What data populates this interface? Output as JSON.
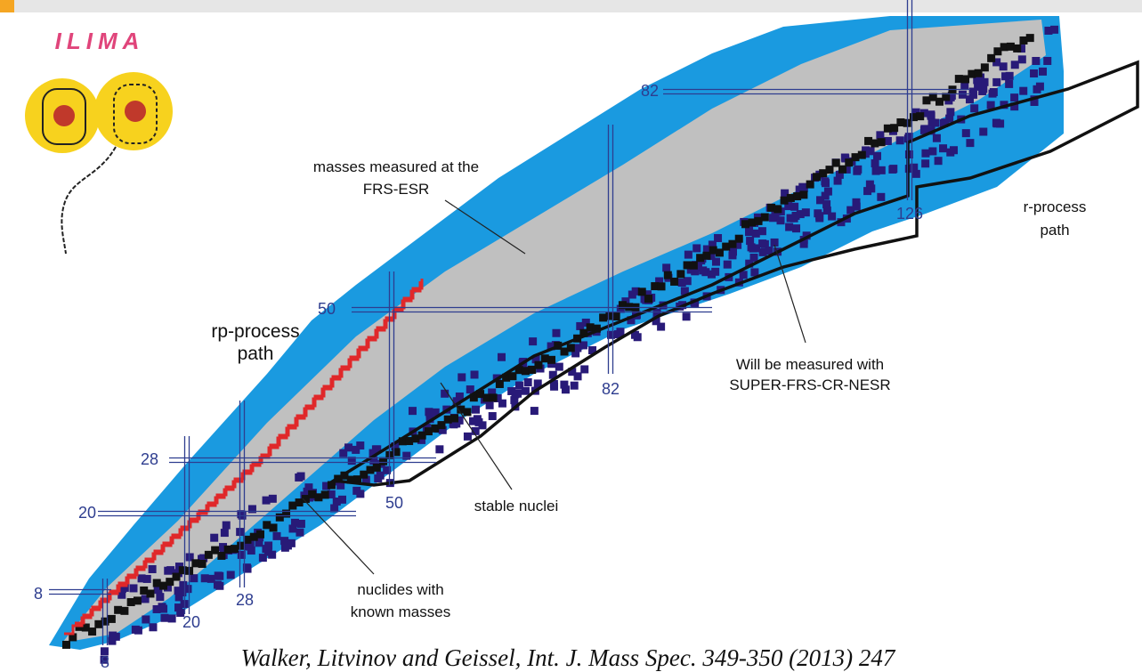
{
  "logo": "ILIMA",
  "labels": {
    "frs_esr": [
      "masses measured at the",
      "FRS-ESR"
    ],
    "rp_process": [
      "rp-process",
      "path"
    ],
    "r_process": [
      "r-process",
      "path"
    ],
    "super_frs": [
      "Will be measured with",
      "SUPER-FRS-CR-NESR"
    ],
    "stable": "stable nuclei",
    "known": [
      "nuclides with",
      "known masses"
    ]
  },
  "magic_numbers": {
    "protons": [
      8,
      20,
      28,
      50,
      82
    ],
    "neutrons": [
      8,
      20,
      28,
      50,
      82,
      126
    ]
  },
  "citation": "Walker, Litvinov and Geissel, Int. J. Mass Spec. 349-350 (2013) 247"
}
